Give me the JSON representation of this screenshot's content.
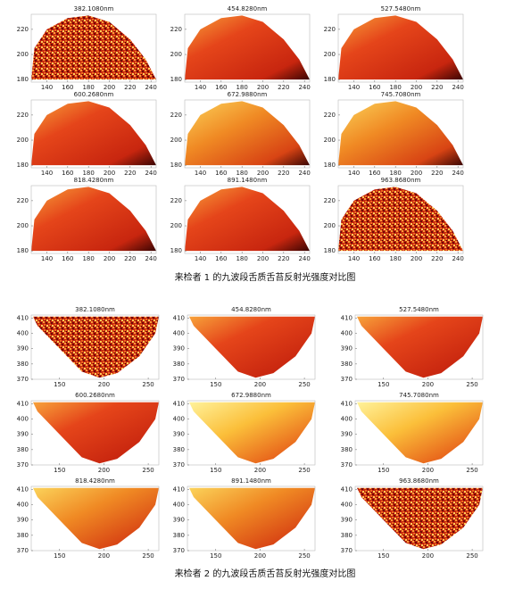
{
  "figures": [
    {
      "panels": [
        "382.1080nm",
        "454.8280nm",
        "527.5480nm",
        "600.2680nm",
        "672.9880nm",
        "745.7080nm",
        "818.4280nm",
        "891.1480nm",
        "963.8680nm"
      ],
      "xlim": [
        125,
        245
      ],
      "ylim": [
        178,
        232
      ],
      "xticks": [
        140,
        160,
        180,
        200,
        220,
        240
      ],
      "yticks": [
        180,
        200,
        220
      ],
      "caption": "来检者 1 的九波段舌质舌苔反射光强度对比图"
    },
    {
      "panels": [
        "382.1080nm",
        "454.8280nm",
        "527.5480nm",
        "600.2680nm",
        "672.9880nm",
        "745.7080nm",
        "818.4280nm",
        "891.1480nm",
        "963.8680nm"
      ],
      "xlim": [
        118,
        262
      ],
      "ylim": [
        370,
        412
      ],
      "xticks": [
        150,
        200,
        250
      ],
      "yticks": [
        370,
        380,
        390,
        400,
        410
      ],
      "caption": "来检者 2 的九波段舌质舌苔反射光强度对比图"
    }
  ]
}
